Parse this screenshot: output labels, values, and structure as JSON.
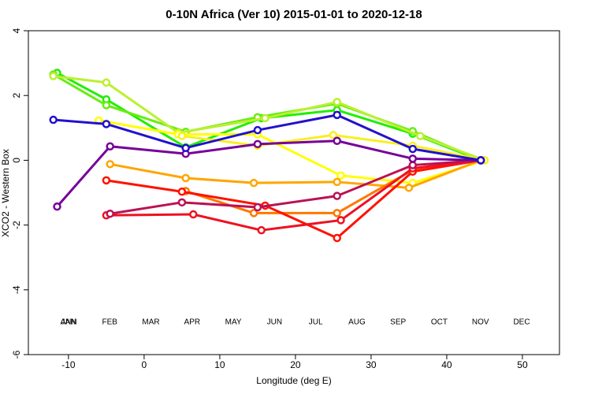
{
  "chart_data": {
    "type": "line",
    "title": "0-10N Africa (Ver 10)   2015-01-01 to 2020-12-18",
    "x_label": "Longitude (deg E)",
    "y_label": "XCO2 - Western Box",
    "xlim": [
      -15.3,
      54.9
    ],
    "ylim": [
      -6,
      4
    ],
    "xticks": [
      -10,
      0,
      10,
      20,
      30,
      40,
      50
    ],
    "yticks": [
      -6,
      -4,
      -2,
      0,
      2,
      4
    ],
    "extra_label": {
      "text": "ANN",
      "color": "#22dd00"
    },
    "series": [
      {
        "name": "JAN",
        "color": "#22ee00",
        "x": [
          -11.5,
          -5,
          5.5,
          15.5,
          25.5,
          35.5,
          44.5
        ],
        "values": [
          2.7,
          1.88,
          0.4,
          1.3,
          1.55,
          0.82,
          0
        ]
      },
      {
        "name": "FEB",
        "color": "#66ee11",
        "x": [
          -12,
          -5,
          5.5,
          15,
          25.5,
          35.5,
          44.5
        ],
        "values": [
          2.65,
          1.7,
          0.88,
          1.33,
          1.75,
          0.9,
          0
        ]
      },
      {
        "name": "MAR",
        "color": "#bbf030",
        "x": [
          -12,
          -5,
          4.5,
          16,
          25.5,
          36.5,
          45
        ],
        "values": [
          2.6,
          2.4,
          0.85,
          1.3,
          1.8,
          0.75,
          0
        ]
      },
      {
        "name": "APR",
        "color": "#ffff00",
        "x": [
          -6,
          4.5,
          15,
          26,
          35.5,
          45
        ],
        "values": [
          1.23,
          0.8,
          0.8,
          -0.47,
          -0.7,
          0
        ]
      },
      {
        "name": "MAY",
        "color": "#f8f020",
        "x": [
          5,
          15,
          25,
          35.5,
          45
        ],
        "values": [
          0.75,
          0.45,
          0.78,
          0.45,
          0
        ]
      },
      {
        "name": "JUN",
        "color": "#ffa500",
        "x": [
          -4.5,
          5.5,
          14.5,
          25.5,
          35,
          44.5
        ],
        "values": [
          -0.12,
          -0.55,
          -0.7,
          -0.67,
          -0.85,
          0
        ]
      },
      {
        "name": "JUL",
        "color": "#ff7700",
        "x": [
          5.5,
          14.5,
          25.5,
          35.5,
          44.5
        ],
        "values": [
          -0.95,
          -1.63,
          -1.63,
          -0.3,
          0
        ]
      },
      {
        "name": "AUG",
        "color": "#ff1100",
        "x": [
          -5,
          5,
          16,
          25.5,
          35.5,
          44.5
        ],
        "values": [
          -0.62,
          -0.97,
          -1.4,
          -2.4,
          -0.35,
          0
        ]
      },
      {
        "name": "SEP",
        "color": "#ee1122",
        "x": [
          -5,
          6.5,
          15.5,
          26,
          35.5,
          44.5
        ],
        "values": [
          -1.7,
          -1.67,
          -2.16,
          -1.85,
          -0.25,
          0
        ]
      },
      {
        "name": "OCT",
        "color": "#bb1155",
        "x": [
          -4.5,
          5,
          15,
          25.5,
          35.5,
          44.5
        ],
        "values": [
          -1.65,
          -1.3,
          -1.45,
          -1.1,
          -0.15,
          0
        ]
      },
      {
        "name": "NOV",
        "color": "#770099",
        "x": [
          -11.5,
          -4.5,
          5.5,
          15,
          25.5,
          35.5,
          44.5
        ],
        "values": [
          -1.43,
          0.43,
          0.2,
          0.5,
          0.6,
          0.05,
          0
        ]
      },
      {
        "name": "DEC",
        "color": "#2211cc",
        "x": [
          -12,
          -5,
          5.5,
          15,
          25.5,
          35.5,
          44.5
        ],
        "values": [
          1.25,
          1.12,
          0.38,
          0.93,
          1.4,
          0.35,
          0
        ]
      }
    ]
  }
}
